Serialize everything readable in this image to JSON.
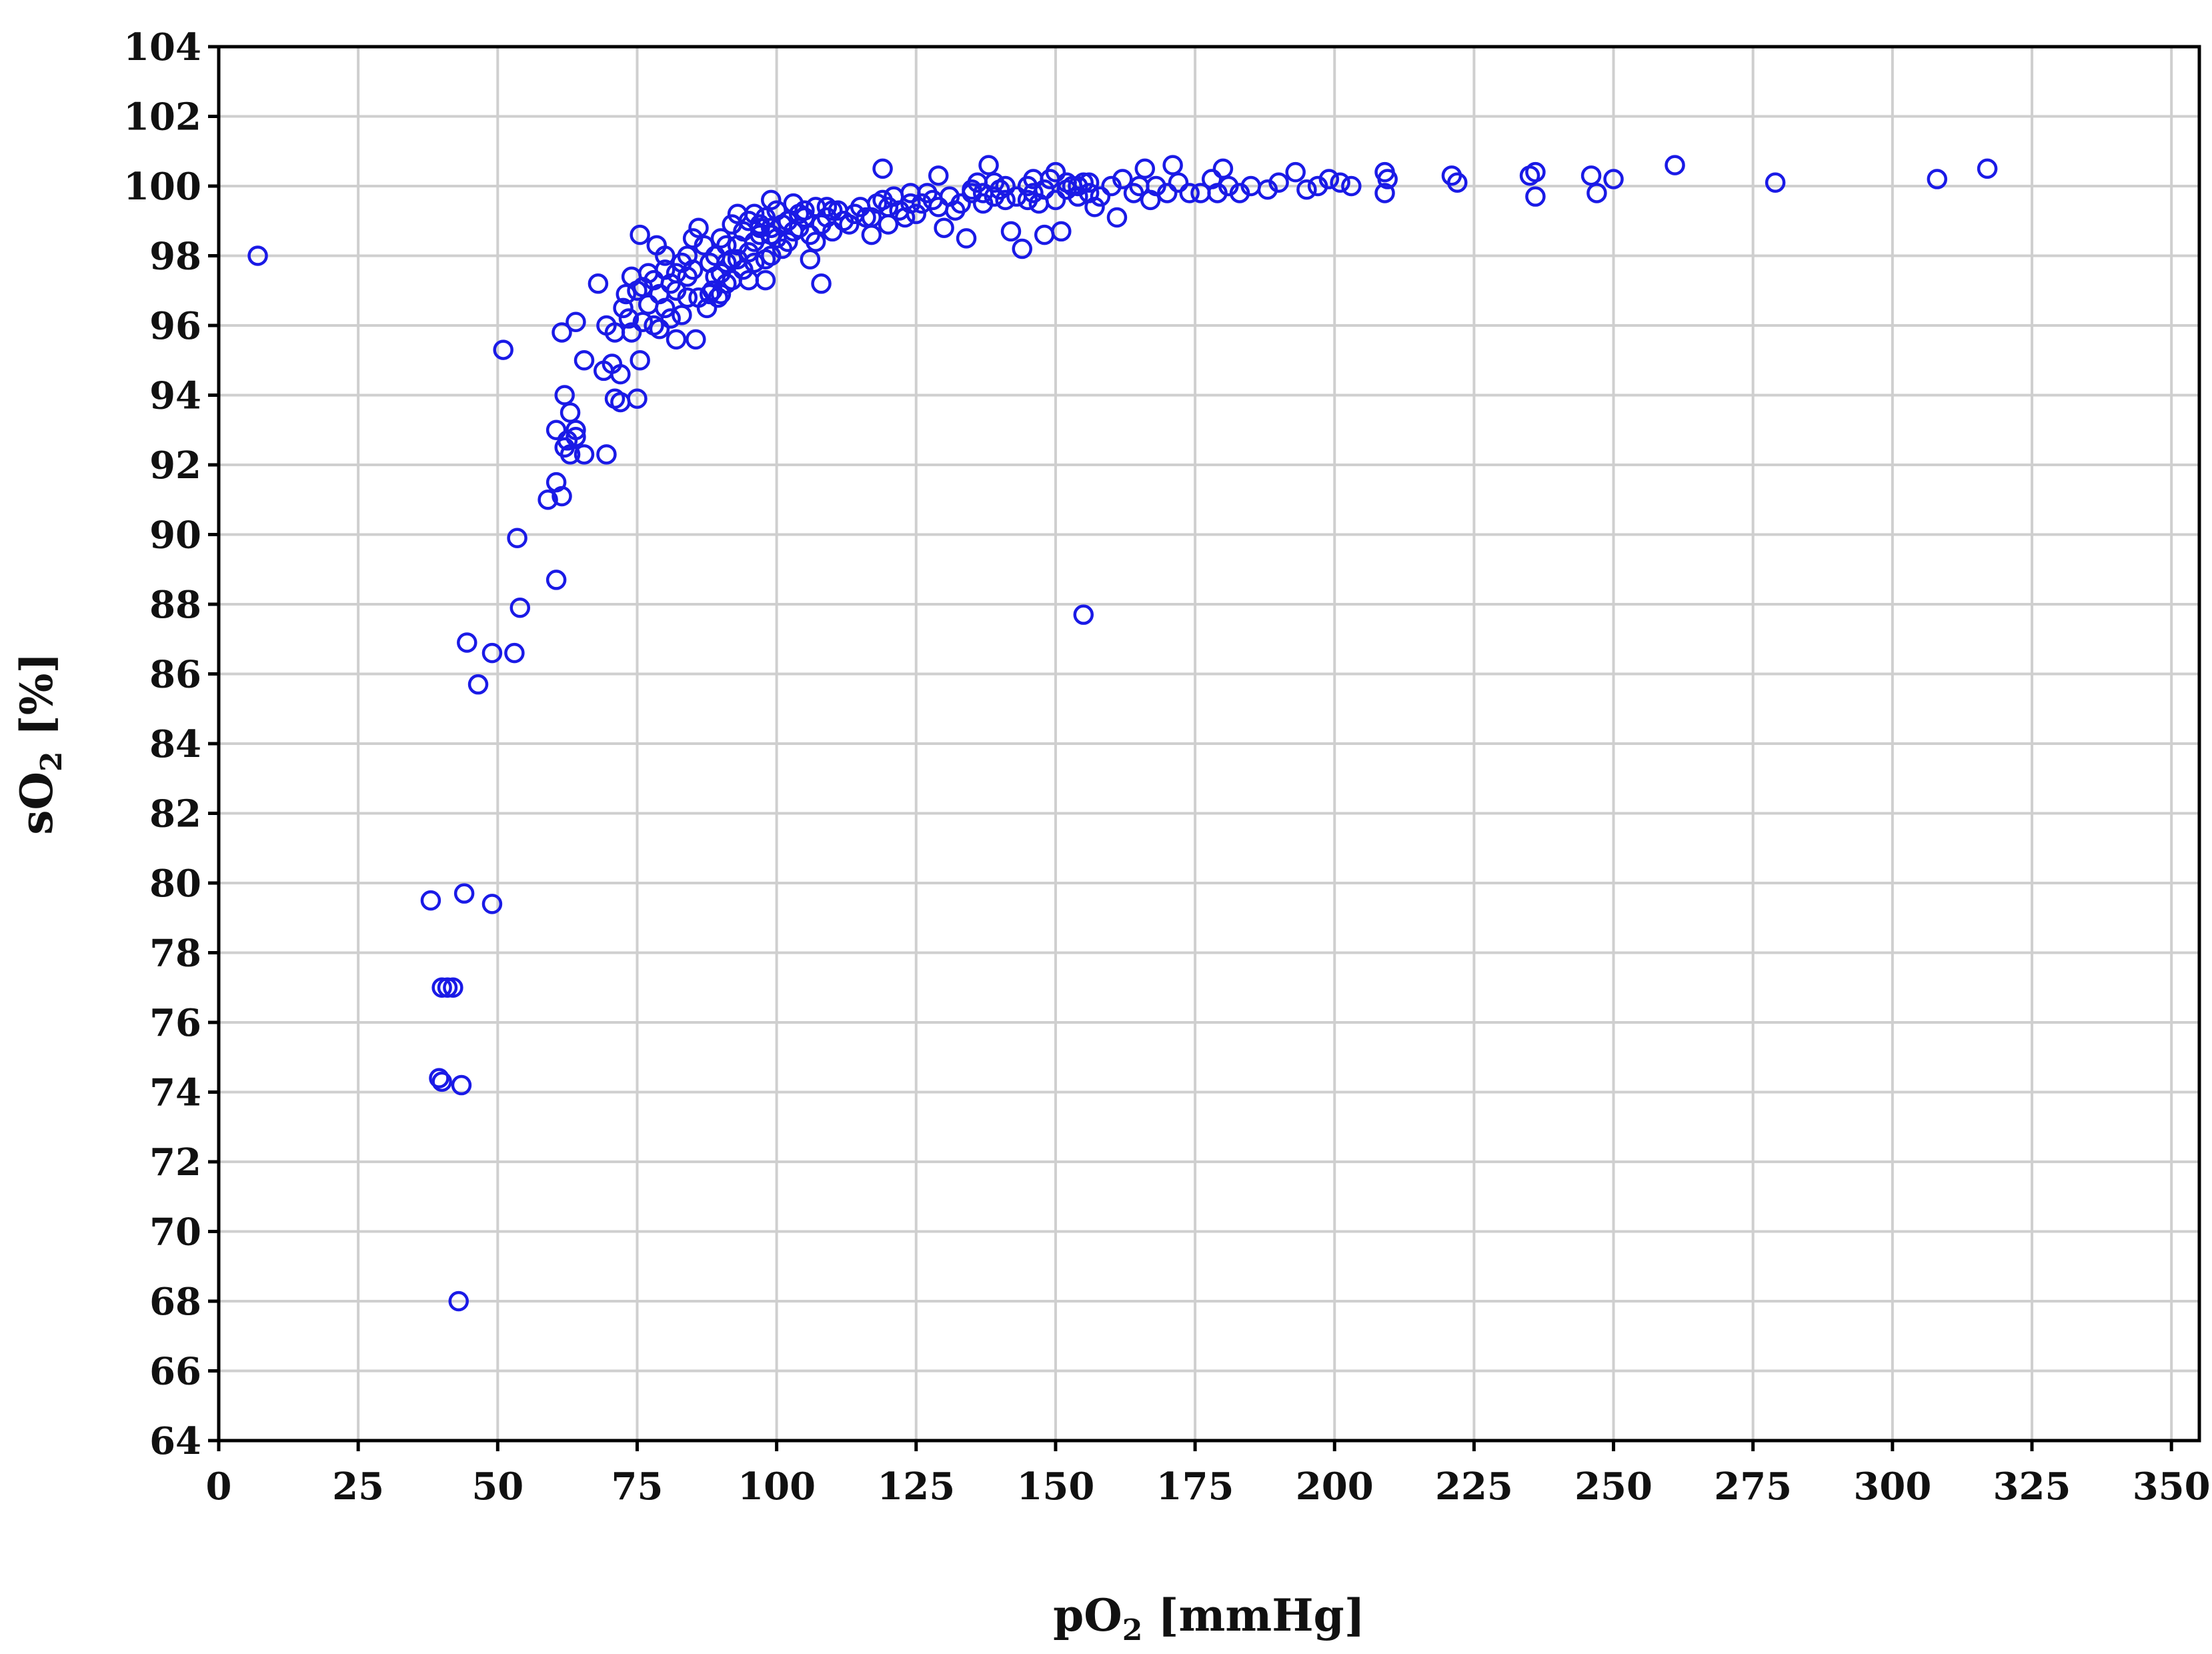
{
  "chart_data": {
    "type": "scatter",
    "title": "",
    "xlabel": {
      "prefix": "pO",
      "sub": "2",
      "suffix": " [mmHg]"
    },
    "ylabel": {
      "prefix": "sO",
      "sub": "2",
      "suffix": " [%]"
    },
    "xlim": [
      0,
      355
    ],
    "ylim": [
      64,
      104
    ],
    "xticks": [
      "0",
      "25",
      "50",
      "75",
      "100",
      "125",
      "150",
      "175",
      "200",
      "225",
      "250",
      "275",
      "300",
      "325",
      "350"
    ],
    "yticks": [
      "64",
      "66",
      "68",
      "70",
      "72",
      "74",
      "76",
      "78",
      "80",
      "82",
      "84",
      "86",
      "88",
      "90",
      "92",
      "94",
      "96",
      "98",
      "100",
      "102",
      "104"
    ],
    "grid": true,
    "marker": "open-circle",
    "color": "#1a1ae6",
    "series": [
      {
        "points": [
          [
            7,
            98
          ],
          [
            51,
            95.3
          ],
          [
            155,
            87.7
          ],
          [
            38,
            79.5
          ],
          [
            44,
            79.7
          ],
          [
            49,
            79.4
          ],
          [
            40,
            77
          ],
          [
            41,
            77
          ],
          [
            42,
            77
          ],
          [
            39.5,
            74.4
          ],
          [
            40,
            74.3
          ],
          [
            43.5,
            74.2
          ],
          [
            43,
            68
          ],
          [
            44.5,
            86.9
          ],
          [
            46.5,
            85.7
          ],
          [
            49,
            86.6
          ],
          [
            53,
            86.6
          ],
          [
            54,
            87.9
          ],
          [
            60.5,
            88.7
          ],
          [
            53.5,
            89.9
          ],
          [
            59,
            91
          ],
          [
            60.5,
            91.5
          ],
          [
            61.5,
            91.1
          ],
          [
            60.5,
            93
          ],
          [
            62,
            92.5
          ],
          [
            62.5,
            92.7
          ],
          [
            63,
            92.3
          ],
          [
            64,
            92.8
          ],
          [
            65.5,
            92.3
          ],
          [
            69.5,
            92.3
          ],
          [
            62,
            94
          ],
          [
            63,
            93.5
          ],
          [
            64,
            93
          ],
          [
            71,
            93.9
          ],
          [
            72,
            93.8
          ],
          [
            75,
            93.9
          ],
          [
            61.5,
            95.8
          ],
          [
            64,
            96.1
          ],
          [
            65.5,
            95
          ],
          [
            69,
            94.7
          ],
          [
            70.5,
            94.9
          ],
          [
            72,
            94.6
          ],
          [
            75.5,
            95
          ],
          [
            68,
            97.2
          ],
          [
            69.5,
            96
          ],
          [
            71,
            95.8
          ],
          [
            72.5,
            96.5
          ],
          [
            73.5,
            96.2
          ],
          [
            74,
            95.8
          ],
          [
            75,
            97
          ],
          [
            75.5,
            98.6
          ],
          [
            76,
            96.1
          ],
          [
            77,
            97.5
          ],
          [
            78,
            96
          ],
          [
            79,
            95.9
          ],
          [
            80,
            96.5
          ],
          [
            81,
            97.2
          ],
          [
            82,
            95.6
          ],
          [
            83,
            96.3
          ],
          [
            84,
            97.4
          ],
          [
            85.5,
            95.6
          ],
          [
            78.5,
            98.3
          ],
          [
            80,
            98
          ],
          [
            82,
            97.5
          ],
          [
            84,
            98
          ],
          [
            85,
            98.5
          ],
          [
            86,
            98.8
          ],
          [
            87,
            98.3
          ],
          [
            88,
            97.8
          ],
          [
            86,
            96.8
          ],
          [
            87.5,
            96.5
          ],
          [
            88.5,
            97
          ],
          [
            89.5,
            96.8
          ],
          [
            90,
            97.5
          ],
          [
            91,
            97.2
          ],
          [
            89,
            98
          ],
          [
            90,
            98.5
          ],
          [
            91,
            98.3
          ],
          [
            92,
            98.9
          ],
          [
            93,
            99.2
          ],
          [
            94,
            98.7
          ],
          [
            95,
            99
          ],
          [
            96,
            99.2
          ],
          [
            97,
            98.8
          ],
          [
            95,
            97.3
          ],
          [
            98,
            97.3
          ],
          [
            99,
            98
          ],
          [
            100,
            98.5
          ],
          [
            101,
            98.2
          ],
          [
            102,
            99
          ],
          [
            103,
            98.7
          ],
          [
            104,
            99.2
          ],
          [
            99,
            99.6
          ],
          [
            105,
            99.3
          ],
          [
            106,
            97.9
          ],
          [
            107,
            98.4
          ],
          [
            108,
            97.2
          ],
          [
            109,
            99.4
          ],
          [
            110,
            99.3
          ],
          [
            112,
            99
          ],
          [
            114,
            99.2
          ],
          [
            116,
            99.1
          ],
          [
            117,
            98.6
          ],
          [
            118,
            99.5
          ],
          [
            119,
            100.5
          ],
          [
            120,
            99.4
          ],
          [
            121,
            99.7
          ],
          [
            123,
            99.1
          ],
          [
            124,
            99.8
          ],
          [
            126,
            99.5
          ],
          [
            128,
            99.6
          ],
          [
            129,
            100.3
          ],
          [
            130,
            98.8
          ],
          [
            132,
            99.3
          ],
          [
            134,
            98.5
          ],
          [
            135,
            99.8
          ],
          [
            136,
            100.1
          ],
          [
            137,
            99.5
          ],
          [
            138,
            100.6
          ],
          [
            139,
            99.7
          ],
          [
            140,
            99.9
          ],
          [
            141,
            99.6
          ],
          [
            142,
            98.7
          ],
          [
            144,
            98.2
          ],
          [
            145,
            100
          ],
          [
            146,
            99.8
          ],
          [
            147,
            99.5
          ],
          [
            148,
            98.6
          ],
          [
            149,
            100.2
          ],
          [
            150,
            100.4
          ],
          [
            151,
            98.7
          ],
          [
            152,
            99.9
          ],
          [
            153,
            100
          ],
          [
            154,
            99.7
          ],
          [
            155,
            100.1
          ],
          [
            156,
            99.8
          ],
          [
            157,
            99.4
          ],
          [
            158,
            99.7
          ],
          [
            160,
            100
          ],
          [
            161,
            99.1
          ],
          [
            162,
            100.2
          ],
          [
            164,
            99.8
          ],
          [
            165,
            100
          ],
          [
            166,
            100.5
          ],
          [
            167,
            99.6
          ],
          [
            168,
            100
          ],
          [
            170,
            99.8
          ],
          [
            171,
            100.6
          ],
          [
            172,
            100.1
          ],
          [
            174,
            99.8
          ],
          [
            176,
            99.8
          ],
          [
            178,
            100.2
          ],
          [
            179,
            99.8
          ],
          [
            180,
            100.5
          ],
          [
            181,
            100
          ],
          [
            183,
            99.8
          ],
          [
            185,
            100
          ],
          [
            188,
            99.9
          ],
          [
            190,
            100.1
          ],
          [
            193,
            100.4
          ],
          [
            195,
            99.9
          ],
          [
            197,
            100
          ],
          [
            199,
            100.2
          ],
          [
            201,
            100.1
          ],
          [
            203,
            100
          ],
          [
            209,
            100.4
          ],
          [
            209.5,
            100.2
          ],
          [
            209,
            99.8
          ],
          [
            221,
            100.3
          ],
          [
            222,
            100.1
          ],
          [
            235,
            100.3
          ],
          [
            236,
            100.4
          ],
          [
            236,
            99.7
          ],
          [
            246,
            100.3
          ],
          [
            247,
            99.8
          ],
          [
            250,
            100.2
          ],
          [
            261,
            100.6
          ],
          [
            279,
            100.1
          ],
          [
            308,
            100.2
          ],
          [
            317,
            100.5
          ],
          [
            96,
            98.4
          ],
          [
            97,
            98.9
          ],
          [
            98,
            99.1
          ],
          [
            99,
            98.6
          ],
          [
            100,
            99.3
          ],
          [
            101,
            98.9
          ],
          [
            102,
            98.4
          ],
          [
            103,
            99.5
          ],
          [
            104,
            98.8
          ],
          [
            105,
            99.1
          ],
          [
            106,
            98.6
          ],
          [
            107,
            99.4
          ],
          [
            108,
            98.9
          ],
          [
            109,
            99.1
          ],
          [
            110,
            98.7
          ],
          [
            111,
            99.3
          ],
          [
            113,
            98.9
          ],
          [
            115,
            99.4
          ],
          [
            117,
            99.1
          ],
          [
            119,
            99.6
          ],
          [
            120,
            98.9
          ],
          [
            122,
            99.3
          ],
          [
            124,
            99.5
          ],
          [
            125,
            99.2
          ],
          [
            127,
            99.8
          ],
          [
            129,
            99.4
          ],
          [
            131,
            99.7
          ],
          [
            133,
            99.5
          ],
          [
            135,
            99.9
          ],
          [
            137,
            99.8
          ],
          [
            139,
            100.1
          ],
          [
            141,
            100
          ],
          [
            143,
            99.7
          ],
          [
            145,
            99.6
          ],
          [
            146,
            100.2
          ],
          [
            148,
            99.9
          ],
          [
            150,
            99.6
          ],
          [
            152,
            100.1
          ],
          [
            154,
            100
          ],
          [
            156,
            100.1
          ],
          [
            92,
            97.9
          ],
          [
            93,
            98.3
          ],
          [
            94,
            97.6
          ],
          [
            95,
            98.1
          ],
          [
            96,
            97.8
          ],
          [
            97,
            98.6
          ],
          [
            98,
            97.9
          ],
          [
            99,
            98.8
          ],
          [
            88,
            96.9
          ],
          [
            89,
            97.4
          ],
          [
            90,
            96.9
          ],
          [
            91,
            97.8
          ],
          [
            92,
            97.3
          ],
          [
            93,
            97.9
          ],
          [
            82,
            97
          ],
          [
            83,
            97.8
          ],
          [
            84,
            96.8
          ],
          [
            85,
            97.6
          ],
          [
            76,
            97.1
          ],
          [
            77,
            96.6
          ],
          [
            78,
            97.3
          ],
          [
            79,
            96.9
          ],
          [
            80,
            97.6
          ],
          [
            81,
            96.2
          ],
          [
            73,
            96.9
          ],
          [
            74,
            97.4
          ]
        ]
      }
    ]
  }
}
